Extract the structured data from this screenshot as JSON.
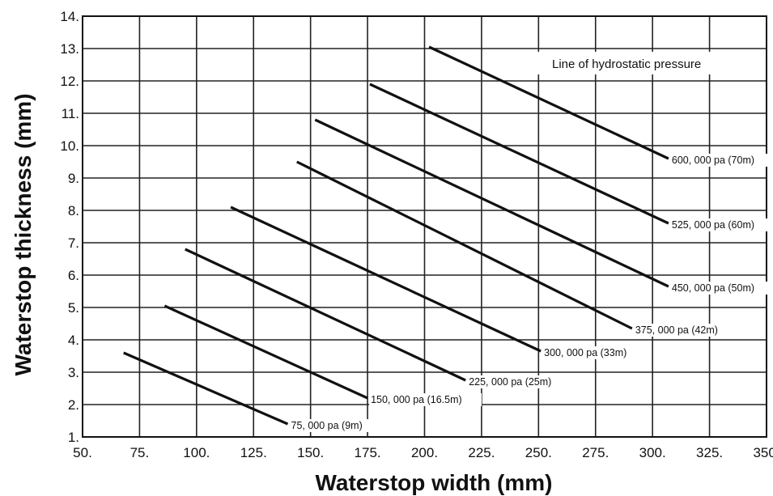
{
  "chart_data": {
    "type": "line",
    "title": "",
    "xlabel": "Waterstop width (mm)",
    "ylabel": "Waterstop thickness (mm)",
    "xlim": [
      50,
      350
    ],
    "ylim": [
      1,
      14
    ],
    "x_ticks": [
      "50.",
      "75.",
      "100.",
      "125.",
      "150.",
      "175.",
      "200.",
      "225.",
      "250.",
      "275.",
      "300.",
      "325.",
      "350."
    ],
    "y_ticks": [
      "1.",
      "2.",
      "3.",
      "4.",
      "5.",
      "6.",
      "7.",
      "8.",
      "9.",
      "10.",
      "11.",
      "12.",
      "13.",
      "14."
    ],
    "grid": true,
    "annotation": "Line of hydrostatic pressure",
    "series": [
      {
        "name": "75, 000 pa (9m)",
        "x": [
          68,
          140
        ],
        "y": [
          3.6,
          1.4
        ]
      },
      {
        "name": "150, 000 pa (16.5m)",
        "x": [
          86,
          175
        ],
        "y": [
          5.05,
          2.2
        ]
      },
      {
        "name": "225, 000 pa (25m)",
        "x": [
          95,
          218
        ],
        "y": [
          6.8,
          2.75
        ]
      },
      {
        "name": "300, 000 pa (33m)",
        "x": [
          115,
          251
        ],
        "y": [
          8.1,
          3.65
        ]
      },
      {
        "name": "375, 000 pa (42m)",
        "x": [
          144,
          291
        ],
        "y": [
          9.5,
          4.35
        ]
      },
      {
        "name": "450, 000 pa (50m)",
        "x": [
          152,
          307
        ],
        "y": [
          10.8,
          5.65
        ]
      },
      {
        "name": "525, 000 pa (60m)",
        "x": [
          176,
          307
        ],
        "y": [
          11.9,
          7.6
        ]
      },
      {
        "name": "600, 000 pa (70m)",
        "x": [
          202,
          307
        ],
        "y": [
          13.05,
          9.6
        ]
      }
    ]
  }
}
